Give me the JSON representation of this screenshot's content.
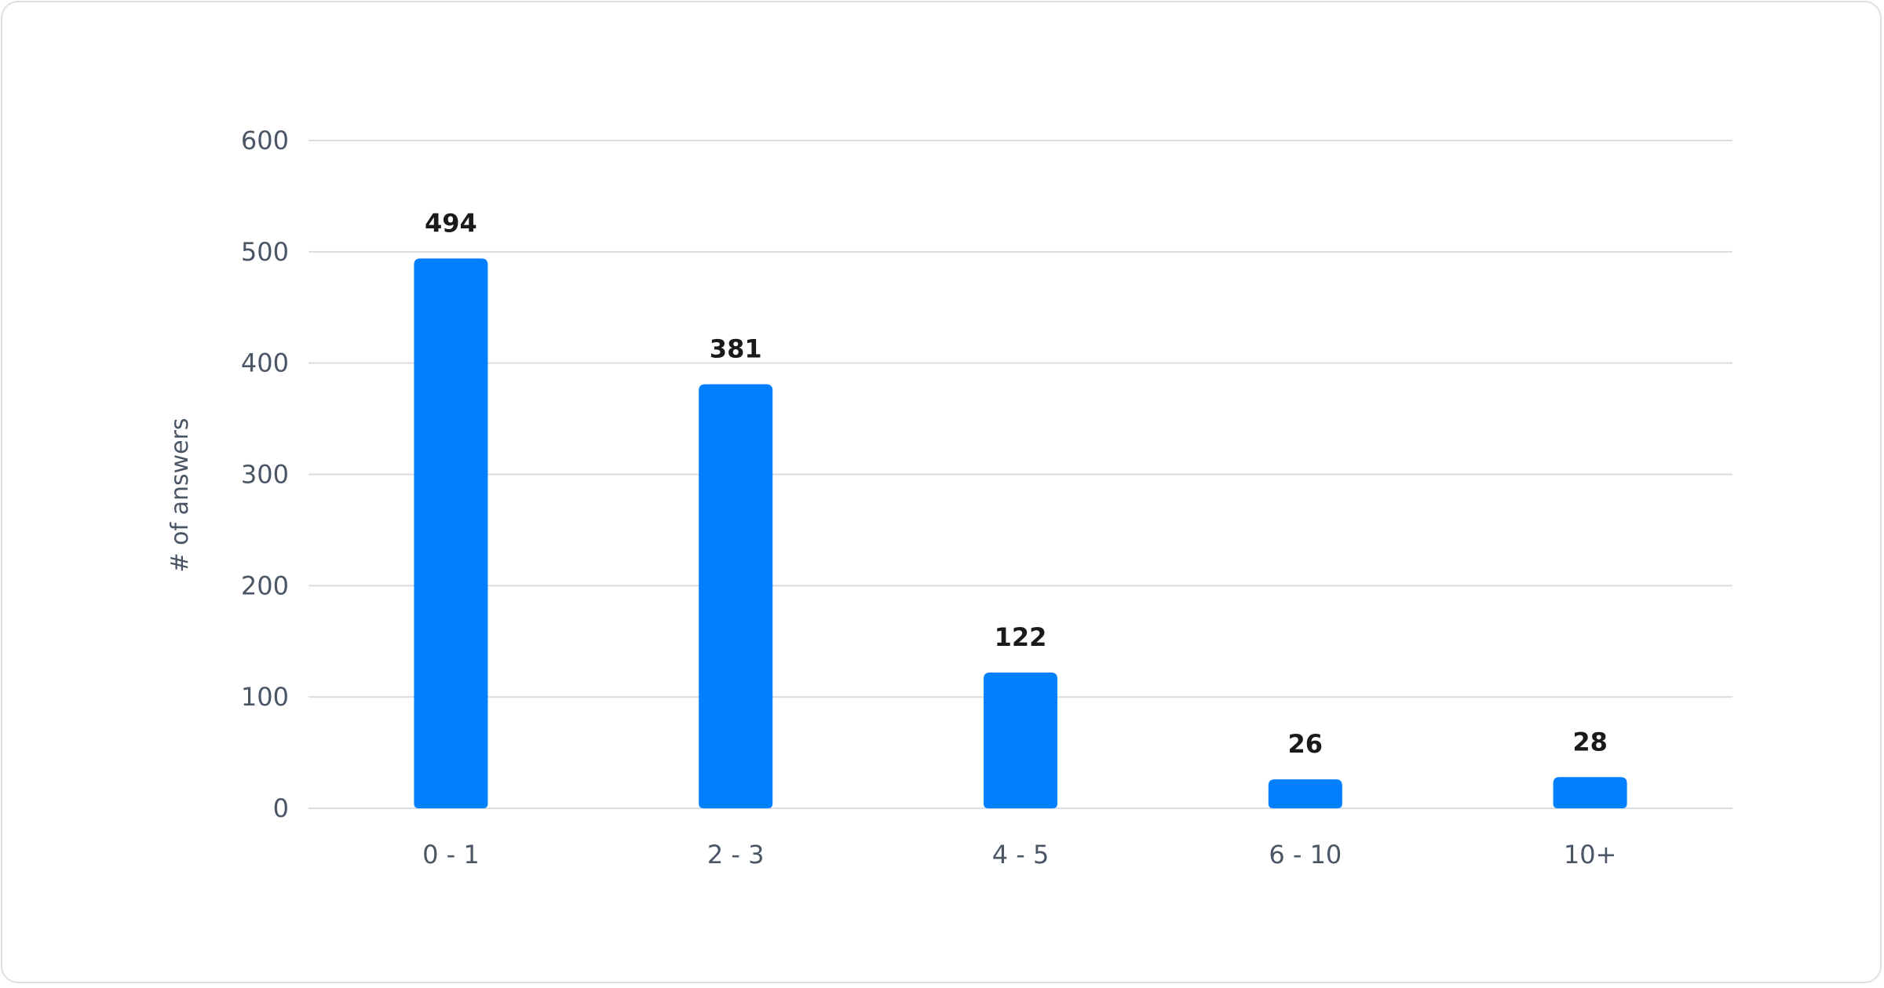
{
  "chart_data": {
    "type": "bar",
    "categories": [
      "0 - 1",
      "2 - 3",
      "4 - 5",
      "6 - 10",
      "10+"
    ],
    "values": [
      494,
      381,
      122,
      26,
      28
    ],
    "title": "",
    "xlabel": "",
    "ylabel": "# of answers",
    "ylim": [
      0,
      600
    ],
    "yticks": [
      0,
      100,
      200,
      300,
      400,
      500,
      600
    ],
    "grid": true,
    "data_labels": true,
    "bar_color": "#007fff",
    "grid_color": "#d9dce1"
  }
}
